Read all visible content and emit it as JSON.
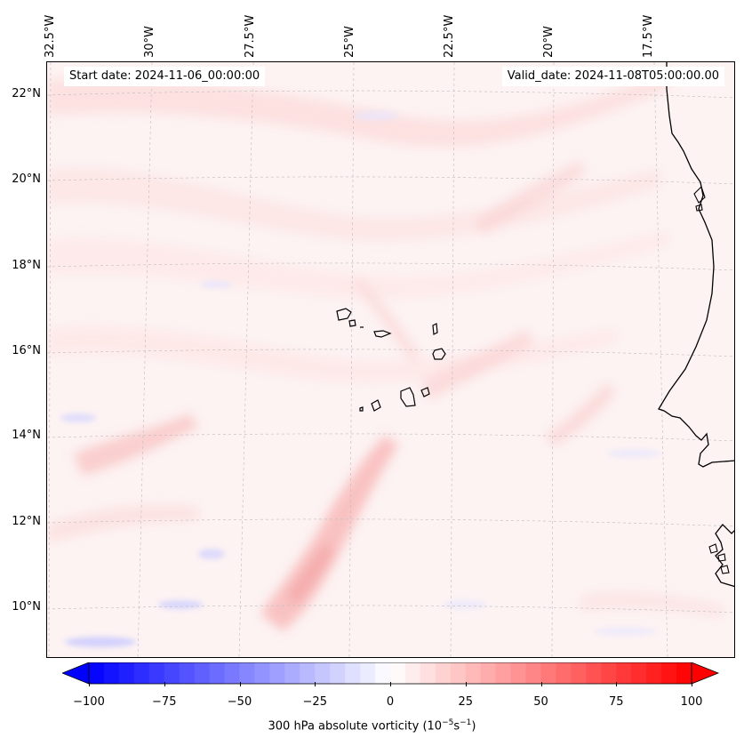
{
  "map": {
    "start_date_label": "Start date: 2024-11-06_00:00:00",
    "valid_date_label": "Valid_date: 2024-11-08T05:00:00.00",
    "longitude_labels": [
      "32.5°W",
      "30°W",
      "27.5°W",
      "25°W",
      "22.5°W",
      "20°W",
      "17.5°W"
    ],
    "latitude_labels": [
      "22°N",
      "20°N",
      "18°N",
      "16°N",
      "14°N",
      "12°N",
      "10°N"
    ],
    "field": "300 hPa absolute vorticity",
    "colormap": {
      "negative": "#0000ff",
      "zero": "#ffffff",
      "positive": "#ff0000"
    },
    "coastline_color": "#000000"
  },
  "colorbar": {
    "ticks": [
      "−100",
      "−75",
      "−50",
      "−25",
      "0",
      "25",
      "50",
      "75",
      "100"
    ],
    "range": [
      -100,
      100
    ],
    "extend": "both",
    "label": "300 hPa absolute vorticity (10",
    "label_exp1": "−5",
    "label_mid": "s",
    "label_exp2": "−1",
    "label_end": ")"
  }
}
